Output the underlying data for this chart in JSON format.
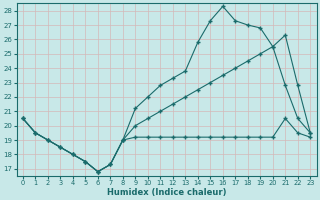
{
  "title": "",
  "xlabel": "Humidex (Indice chaleur)",
  "xlim": [
    -0.5,
    23.5
  ],
  "ylim": [
    16.5,
    28.5
  ],
  "yticks": [
    17,
    18,
    19,
    20,
    21,
    22,
    23,
    24,
    25,
    26,
    27,
    28
  ],
  "xticks": [
    0,
    1,
    2,
    3,
    4,
    5,
    6,
    7,
    8,
    9,
    10,
    11,
    12,
    13,
    14,
    15,
    16,
    17,
    18,
    19,
    20,
    21,
    22,
    23
  ],
  "bg_color": "#c8e8e8",
  "grid_color": "#aacccc",
  "line_color": "#1a6b6b",
  "line1_y": [
    20.5,
    19.5,
    19.0,
    18.5,
    18.0,
    17.5,
    16.8,
    17.3,
    19.0,
    19.2,
    19.2,
    19.2,
    19.2,
    19.2,
    19.2,
    19.2,
    19.2,
    19.2,
    19.2,
    19.2,
    19.2,
    20.5,
    19.5,
    19.2
  ],
  "line2_y": [
    20.5,
    19.5,
    19.0,
    18.5,
    18.0,
    17.5,
    16.8,
    17.3,
    19.0,
    21.2,
    22.0,
    22.8,
    23.3,
    23.8,
    25.8,
    27.3,
    28.3,
    27.3,
    27.0,
    26.8,
    25.5,
    22.8,
    20.5,
    19.5
  ],
  "line3_y": [
    20.5,
    19.5,
    19.0,
    18.5,
    18.0,
    17.5,
    16.8,
    17.3,
    19.0,
    20.0,
    20.5,
    21.0,
    21.5,
    22.0,
    22.5,
    23.0,
    23.5,
    24.0,
    24.5,
    25.0,
    25.5,
    26.3,
    22.8,
    19.5
  ]
}
